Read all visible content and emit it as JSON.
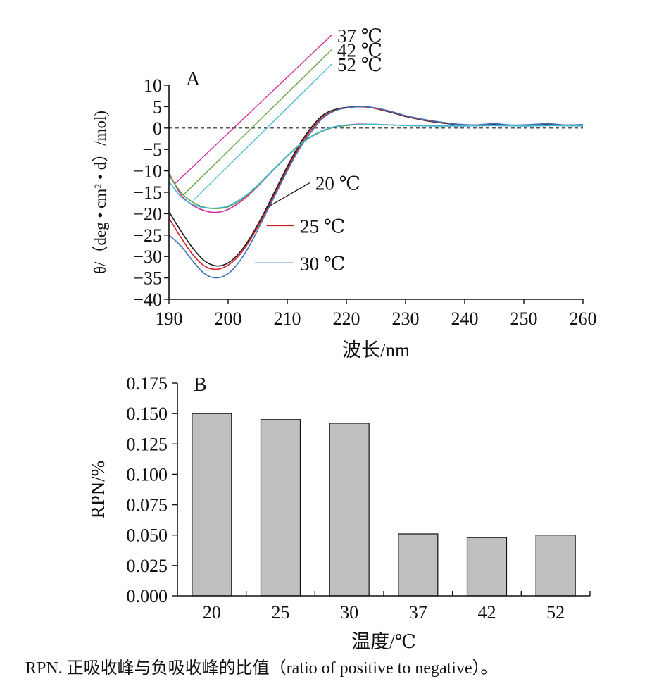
{
  "chart_data": [
    {
      "type": "line",
      "panel_label": "A",
      "xlabel": "波长/nm",
      "ylabel": "θ/（deg • cm² • d）/mol)",
      "xlim": [
        190,
        260
      ],
      "ylim": [
        -40,
        10
      ],
      "xticks": [
        190,
        200,
        210,
        220,
        230,
        240,
        250,
        260
      ],
      "yticks": [
        10,
        5,
        0,
        -5,
        -10,
        -15,
        -20,
        -25,
        -30,
        -35,
        -40
      ],
      "ytick_labels": [
        "10",
        "5",
        "0",
        "−5",
        "−10",
        "−15",
        "−20",
        "−25",
        "−30",
        "−35",
        "−40"
      ],
      "zero_line": "dashed",
      "grid": false,
      "series": [
        {
          "name": "20 ℃",
          "color": "#1a1a1a",
          "x": [
            190,
            192,
            194,
            196,
            198,
            200,
            202,
            204,
            206,
            208,
            210,
            212,
            214,
            216,
            218,
            220,
            222,
            224,
            226,
            228,
            230,
            232,
            234,
            236,
            238,
            240,
            242,
            245,
            248,
            251,
            254,
            257,
            260
          ],
          "y": [
            -19.5,
            -24,
            -28,
            -31,
            -32.2,
            -31.5,
            -29,
            -25,
            -20,
            -14.5,
            -9,
            -4,
            0,
            3,
            4.3,
            4.8,
            5,
            4.8,
            4.2,
            3.5,
            2.7,
            2.1,
            1.6,
            1.2,
            0.9,
            0.7,
            0.7,
            0.9,
            0.6,
            0.7,
            0.8,
            0.6,
            0.7
          ]
        },
        {
          "name": "25 ℃",
          "color": "#d62020",
          "x": [
            190,
            192,
            194,
            196,
            198,
            200,
            202,
            204,
            206,
            208,
            210,
            212,
            214,
            216,
            218,
            220,
            222,
            224,
            226,
            228,
            230,
            232,
            234,
            236,
            238,
            240,
            242,
            245,
            248,
            251,
            254,
            257,
            260
          ],
          "y": [
            -21,
            -25.5,
            -29.5,
            -32.2,
            -33,
            -32,
            -29.5,
            -25.5,
            -20.5,
            -15,
            -9.5,
            -4.5,
            -0.5,
            2.6,
            4.1,
            4.7,
            5,
            4.8,
            4.3,
            3.6,
            2.8,
            2.2,
            1.7,
            1.3,
            1,
            0.7,
            0.7,
            1,
            0.6,
            0.7,
            1,
            0.7,
            0.8
          ]
        },
        {
          "name": "30 ℃",
          "color": "#3f6fb5",
          "x": [
            190,
            192,
            194,
            196,
            198,
            200,
            202,
            204,
            206,
            208,
            210,
            212,
            214,
            216,
            218,
            220,
            222,
            224,
            226,
            228,
            230,
            232,
            234,
            236,
            238,
            240,
            242,
            245,
            248,
            251,
            254,
            257,
            260
          ],
          "y": [
            -25,
            -27.5,
            -31,
            -34,
            -35,
            -34,
            -31,
            -26.5,
            -21,
            -15.5,
            -10,
            -5,
            -1,
            2.3,
            4,
            4.7,
            5,
            4.9,
            4.4,
            3.7,
            2.9,
            2.3,
            1.8,
            1.4,
            1,
            0.8,
            0.7,
            1,
            0.7,
            0.8,
            1,
            0.7,
            0.8
          ]
        },
        {
          "name": "37 ℃",
          "color": "#d6249a",
          "x": [
            190,
            192,
            194,
            196,
            198,
            200,
            202,
            204,
            206,
            208,
            210,
            212,
            214,
            216,
            218,
            220,
            222,
            224,
            226,
            228,
            230,
            235,
            240,
            245,
            250,
            255,
            260
          ],
          "y": [
            -10.5,
            -15.5,
            -18,
            -19.3,
            -19.7,
            -19,
            -17.3,
            -15,
            -12.2,
            -9.3,
            -6.5,
            -4,
            -2,
            -0.6,
            0.3,
            0.7,
            0.9,
            0.9,
            0.8,
            0.7,
            0.6,
            0.5,
            0.5,
            0.6,
            0.5,
            0.6,
            0.5
          ]
        },
        {
          "name": "42 ℃",
          "color": "#5ea33c",
          "x": [
            190,
            192,
            194,
            196,
            198,
            200,
            202,
            204,
            206,
            208,
            210,
            212,
            214,
            216,
            218,
            220,
            222,
            224,
            226,
            228,
            230,
            235,
            240,
            245,
            250,
            255,
            260
          ],
          "y": [
            -11,
            -15,
            -17.3,
            -18.5,
            -18.8,
            -18.4,
            -16.9,
            -14.8,
            -12.1,
            -9.3,
            -6.6,
            -4.1,
            -2.1,
            -0.7,
            0.2,
            0.6,
            0.8,
            0.9,
            0.8,
            0.7,
            0.6,
            0.5,
            0.5,
            0.6,
            0.5,
            0.6,
            0.5
          ]
        },
        {
          "name": "52 ℃",
          "color": "#41b8d6",
          "x": [
            190,
            192,
            194,
            196,
            198,
            200,
            202,
            204,
            206,
            208,
            210,
            212,
            214,
            216,
            218,
            220,
            222,
            224,
            226,
            228,
            230,
            235,
            240,
            245,
            250,
            255,
            260
          ],
          "y": [
            -12.5,
            -16,
            -17.8,
            -18.6,
            -18.7,
            -18.2,
            -16.7,
            -14.6,
            -12,
            -9.2,
            -6.5,
            -4,
            -2,
            -0.6,
            0.3,
            0.7,
            0.8,
            0.9,
            0.8,
            0.7,
            0.6,
            0.5,
            0.5,
            0.6,
            0.5,
            0.6,
            0.5
          ]
        }
      ],
      "annotations": [
        {
          "label": "37 ℃",
          "series": "37 ℃",
          "from": [
            191,
            -13
          ],
          "to": [
            217.5,
            21.7
          ]
        },
        {
          "label": "42 ℃",
          "series": "42 ℃",
          "from": [
            192.6,
            -15.4
          ],
          "to": [
            217.5,
            18.3
          ]
        },
        {
          "label": "52 ℃",
          "series": "52 ℃",
          "from": [
            194.1,
            -16.9
          ],
          "to": [
            217.5,
            14.9
          ]
        },
        {
          "label": "20 ℃",
          "series": "20 ℃",
          "from": [
            206.5,
            -18.6
          ],
          "to": [
            213.8,
            -12.8
          ]
        },
        {
          "label": "25 ℃",
          "series": "25 ℃",
          "from": [
            206.5,
            -22.8
          ],
          "to": [
            211.2,
            -22.8
          ]
        },
        {
          "label": "30 ℃",
          "series": "30 ℃",
          "from": [
            204.5,
            -31.5
          ],
          "to": [
            211.2,
            -31.5
          ]
        }
      ]
    },
    {
      "type": "bar",
      "panel_label": "B",
      "xlabel": "温度/℃",
      "ylabel": "RPN/%",
      "categories": [
        "20",
        "25",
        "30",
        "37",
        "42",
        "52"
      ],
      "values": [
        0.15,
        0.145,
        0.142,
        0.051,
        0.048,
        0.05
      ],
      "ylim": [
        0,
        0.175
      ],
      "yticks": [
        0.175,
        0.15,
        0.125,
        0.1,
        0.075,
        0.05,
        0.025,
        0.0
      ],
      "ytick_labels": [
        "0.175",
        "0.150",
        "0.125",
        "0.100",
        "0.075",
        "0.050",
        "0.025",
        "0.000"
      ],
      "bar_color": "#bfbfbf",
      "grid": false
    }
  ],
  "caption": "RPN. 正吸收峰与负吸收峰的比值（ratio of positive to negative）。"
}
